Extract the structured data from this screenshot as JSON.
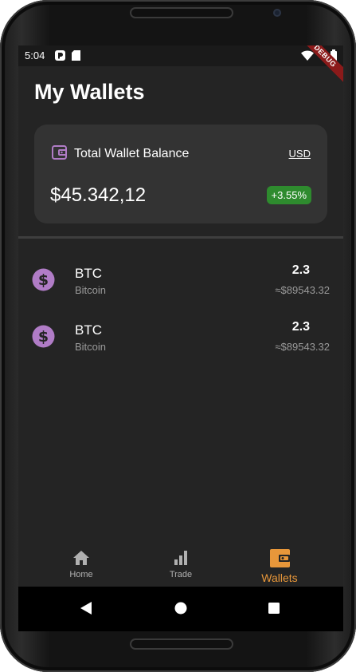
{
  "status_bar": {
    "time": "5:04",
    "debug_banner": "DEBUG"
  },
  "page": {
    "title": "My Wallets"
  },
  "balance_card": {
    "label": "Total Wallet Balance",
    "currency": "USD",
    "amount": "$45.342,12",
    "change": "+3.55%",
    "change_color": "#2e8b2e"
  },
  "assets": [
    {
      "symbol": "BTC",
      "name": "Bitcoin",
      "amount": "2.3",
      "value": "≈$89543.32",
      "icon": "dollar-coin-icon"
    },
    {
      "symbol": "BTC",
      "name": "Bitcoin",
      "amount": "2.3",
      "value": "≈$89543.32",
      "icon": "dollar-coin-icon"
    }
  ],
  "bottom_nav": {
    "items": [
      {
        "label": "Home",
        "icon": "home-icon",
        "active": false
      },
      {
        "label": "Trade",
        "icon": "bar-chart-icon",
        "active": false
      },
      {
        "label": "Wallets",
        "icon": "wallet-icon",
        "active": true
      }
    ],
    "active_color": "#e8973a",
    "inactive_color": "#b0b0b0"
  },
  "theme": {
    "accent": "#b07cc6",
    "background": "#242424",
    "card": "#333333"
  }
}
